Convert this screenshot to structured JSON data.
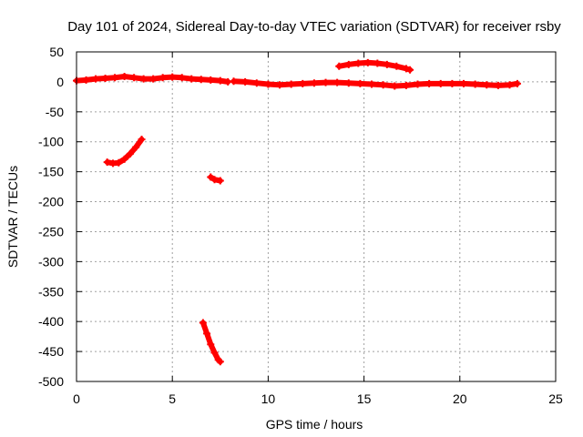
{
  "chart_data": {
    "type": "scatter",
    "title": "Day 101 of 2024, Sidereal Day-to-day VTEC variation (SDTVAR) for receiver rsby",
    "xlabel": "GPS time / hours",
    "ylabel": "SDTVAR / TECUs",
    "xlim": [
      0,
      25
    ],
    "ylim": [
      -500,
      50
    ],
    "xticks": [
      0,
      5,
      10,
      15,
      20,
      25
    ],
    "yticks": [
      50,
      0,
      -50,
      -100,
      -150,
      -200,
      -250,
      -300,
      -350,
      -400,
      -450,
      -500
    ],
    "grid": true,
    "marker_color": "#ff0000",
    "series": [
      {
        "points": [
          [
            0.0,
            2
          ],
          [
            0.5,
            3
          ],
          [
            1.0,
            5
          ],
          [
            1.5,
            6
          ],
          [
            2.0,
            7
          ],
          [
            2.5,
            9
          ],
          [
            3.0,
            7
          ],
          [
            3.5,
            5
          ],
          [
            4.0,
            5
          ],
          [
            4.5,
            7
          ],
          [
            5.0,
            8
          ],
          [
            5.5,
            7
          ],
          [
            6.0,
            5
          ],
          [
            6.5,
            4
          ],
          [
            7.0,
            3
          ],
          [
            7.5,
            2
          ],
          [
            7.9,
            0
          ]
        ]
      },
      {
        "points": [
          [
            8.2,
            1
          ],
          [
            8.8,
            0
          ],
          [
            9.4,
            -2
          ],
          [
            10.0,
            -4
          ],
          [
            10.6,
            -5
          ],
          [
            11.2,
            -4
          ],
          [
            11.8,
            -3
          ],
          [
            12.4,
            -2
          ],
          [
            13.0,
            -1
          ],
          [
            13.6,
            -1
          ],
          [
            14.2,
            -2
          ],
          [
            14.8,
            -3
          ],
          [
            15.4,
            -4
          ],
          [
            16.0,
            -5
          ],
          [
            16.6,
            -7
          ],
          [
            17.2,
            -6
          ],
          [
            17.8,
            -4
          ],
          [
            18.4,
            -3
          ],
          [
            19.0,
            -3
          ],
          [
            19.6,
            -3
          ],
          [
            20.2,
            -3
          ],
          [
            20.8,
            -4
          ],
          [
            21.4,
            -5
          ],
          [
            22.0,
            -6
          ],
          [
            22.6,
            -5
          ],
          [
            23.0,
            -3
          ]
        ]
      },
      {
        "points": [
          [
            13.7,
            26
          ],
          [
            14.2,
            29
          ],
          [
            14.7,
            31
          ],
          [
            15.2,
            32
          ],
          [
            15.7,
            31
          ],
          [
            16.2,
            29
          ],
          [
            16.7,
            26
          ],
          [
            17.2,
            22
          ],
          [
            17.4,
            20
          ]
        ]
      },
      {
        "points": [
          [
            1.6,
            -134
          ],
          [
            1.9,
            -136
          ],
          [
            2.2,
            -135
          ],
          [
            2.5,
            -129
          ],
          [
            2.8,
            -120
          ],
          [
            3.1,
            -109
          ],
          [
            3.4,
            -96
          ]
        ]
      },
      {
        "points": [
          [
            7.0,
            -159
          ],
          [
            7.2,
            -163
          ],
          [
            7.5,
            -165
          ]
        ]
      },
      {
        "points": [
          [
            6.6,
            -402
          ],
          [
            6.8,
            -420
          ],
          [
            7.0,
            -438
          ],
          [
            7.2,
            -452
          ],
          [
            7.4,
            -464
          ],
          [
            7.5,
            -467
          ]
        ]
      }
    ]
  }
}
